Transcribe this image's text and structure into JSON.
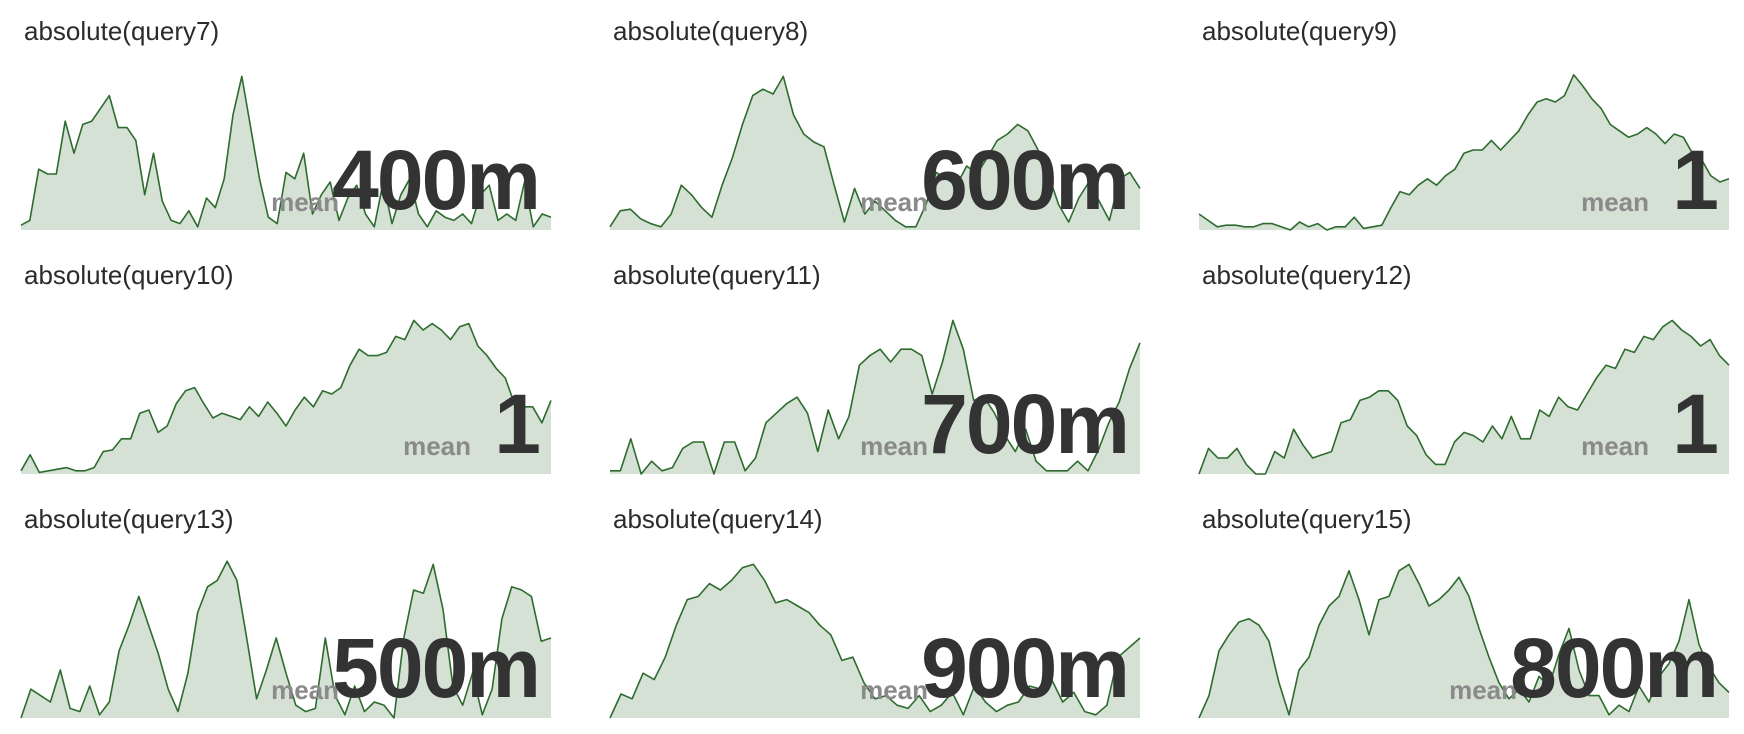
{
  "colors": {
    "line": "#2e6b2e",
    "fill": "#d4e1d4",
    "value": "#333333",
    "label": "#8a8a8a"
  },
  "chart_data": [
    {
      "type": "area",
      "title": "absolute(query7)",
      "stat_label": "mean",
      "value": "400m",
      "ylim": [
        0,
        1
      ],
      "values": [
        0.03,
        0.06,
        0.38,
        0.35,
        0.35,
        0.68,
        0.48,
        0.66,
        0.68,
        0.76,
        0.84,
        0.64,
        0.64,
        0.56,
        0.22,
        0.48,
        0.18,
        0.06,
        0.04,
        0.12,
        0.02,
        0.2,
        0.14,
        0.32,
        0.72,
        0.96,
        0.64,
        0.32,
        0.08,
        0.04,
        0.36,
        0.32,
        0.48,
        0.1,
        0.22,
        0.3,
        0.06,
        0.2,
        0.28,
        0.1,
        0.02,
        0.3,
        0.04,
        0.22,
        0.32,
        0.1,
        0.02,
        0.12,
        0.08,
        0.06,
        0.1,
        0.04,
        0.22,
        0.28,
        0.06,
        0.1,
        0.06,
        0.3,
        0.02,
        0.1,
        0.08
      ]
    },
    {
      "type": "area",
      "title": "absolute(query8)",
      "stat_label": "mean",
      "value": "600m",
      "ylim": [
        0,
        1
      ],
      "values": [
        0.02,
        0.12,
        0.13,
        0.07,
        0.04,
        0.02,
        0.1,
        0.28,
        0.22,
        0.14,
        0.08,
        0.28,
        0.45,
        0.66,
        0.84,
        0.88,
        0.85,
        0.96,
        0.72,
        0.6,
        0.55,
        0.52,
        0.28,
        0.05,
        0.26,
        0.1,
        0.18,
        0.12,
        0.06,
        0.02,
        0.02,
        0.16,
        0.36,
        0.32,
        0.28,
        0.4,
        0.35,
        0.45,
        0.56,
        0.6,
        0.66,
        0.62,
        0.5,
        0.35,
        0.16,
        0.05,
        0.2,
        0.3,
        0.18,
        0.06,
        0.32,
        0.36,
        0.26
      ]
    },
    {
      "type": "area",
      "title": "absolute(query9)",
      "stat_label": "mean",
      "value": "1",
      "ylim": [
        0,
        1
      ],
      "values": [
        0.1,
        0.06,
        0.02,
        0.03,
        0.03,
        0.02,
        0.02,
        0.04,
        0.04,
        0.02,
        0.0,
        0.05,
        0.02,
        0.04,
        0.0,
        0.02,
        0.02,
        0.08,
        0.01,
        0.02,
        0.03,
        0.14,
        0.24,
        0.22,
        0.28,
        0.32,
        0.28,
        0.34,
        0.38,
        0.48,
        0.5,
        0.5,
        0.56,
        0.5,
        0.56,
        0.62,
        0.72,
        0.8,
        0.82,
        0.8,
        0.84,
        0.97,
        0.9,
        0.82,
        0.76,
        0.66,
        0.62,
        0.58,
        0.6,
        0.64,
        0.6,
        0.54,
        0.6,
        0.58,
        0.48,
        0.44,
        0.34,
        0.3,
        0.32
      ]
    },
    {
      "type": "area",
      "title": "absolute(query10)",
      "stat_label": "mean",
      "value": "1",
      "ylim": [
        0,
        1
      ],
      "values": [
        0.02,
        0.12,
        0.01,
        0.02,
        0.03,
        0.04,
        0.02,
        0.02,
        0.04,
        0.14,
        0.15,
        0.22,
        0.22,
        0.38,
        0.4,
        0.26,
        0.3,
        0.44,
        0.52,
        0.54,
        0.44,
        0.35,
        0.38,
        0.36,
        0.34,
        0.42,
        0.36,
        0.45,
        0.38,
        0.3,
        0.4,
        0.48,
        0.42,
        0.52,
        0.5,
        0.54,
        0.68,
        0.78,
        0.74,
        0.74,
        0.76,
        0.86,
        0.84,
        0.96,
        0.9,
        0.94,
        0.9,
        0.84,
        0.92,
        0.94,
        0.8,
        0.74,
        0.66,
        0.6,
        0.44,
        0.42,
        0.42,
        0.32,
        0.46
      ]
    },
    {
      "type": "area",
      "title": "absolute(query11)",
      "stat_label": "mean",
      "value": "700m",
      "ylim": [
        0,
        1
      ],
      "values": [
        0.02,
        0.02,
        0.22,
        0.0,
        0.08,
        0.02,
        0.04,
        0.16,
        0.2,
        0.2,
        0.0,
        0.2,
        0.2,
        0.02,
        0.1,
        0.32,
        0.38,
        0.44,
        0.48,
        0.38,
        0.14,
        0.4,
        0.22,
        0.36,
        0.68,
        0.74,
        0.78,
        0.7,
        0.78,
        0.78,
        0.74,
        0.5,
        0.7,
        0.96,
        0.78,
        0.46,
        0.48,
        0.38,
        0.24,
        0.14,
        0.28,
        0.08,
        0.02,
        0.02,
        0.02,
        0.08,
        0.02,
        0.15,
        0.32,
        0.45,
        0.66,
        0.82
      ]
    },
    {
      "type": "area",
      "title": "absolute(query12)",
      "stat_label": "mean",
      "value": "1",
      "ylim": [
        0,
        1
      ],
      "values": [
        0.0,
        0.16,
        0.1,
        0.1,
        0.16,
        0.06,
        0.0,
        0.0,
        0.14,
        0.1,
        0.28,
        0.18,
        0.1,
        0.12,
        0.14,
        0.32,
        0.34,
        0.46,
        0.48,
        0.52,
        0.52,
        0.46,
        0.3,
        0.24,
        0.12,
        0.06,
        0.06,
        0.2,
        0.26,
        0.24,
        0.2,
        0.3,
        0.22,
        0.36,
        0.22,
        0.22,
        0.4,
        0.36,
        0.48,
        0.42,
        0.4,
        0.5,
        0.6,
        0.68,
        0.66,
        0.78,
        0.76,
        0.86,
        0.84,
        0.92,
        0.96,
        0.9,
        0.86,
        0.8,
        0.84,
        0.74,
        0.68
      ]
    },
    {
      "type": "area",
      "title": "absolute(query13)",
      "stat_label": "mean",
      "value": "500m",
      "ylim": [
        0,
        1
      ],
      "values": [
        0.0,
        0.18,
        0.14,
        0.1,
        0.3,
        0.06,
        0.04,
        0.2,
        0.02,
        0.1,
        0.42,
        0.58,
        0.76,
        0.58,
        0.4,
        0.18,
        0.04,
        0.28,
        0.66,
        0.82,
        0.86,
        0.98,
        0.86,
        0.5,
        0.12,
        0.3,
        0.5,
        0.28,
        0.08,
        0.04,
        0.06,
        0.5,
        0.14,
        0.02,
        0.2,
        0.04,
        0.1,
        0.08,
        0.0,
        0.5,
        0.8,
        0.78,
        0.96,
        0.68,
        0.2,
        0.08,
        0.28,
        0.02,
        0.18,
        0.62,
        0.82,
        0.8,
        0.76,
        0.48,
        0.5
      ]
    },
    {
      "type": "area",
      "title": "absolute(query14)",
      "stat_label": "mean",
      "value": "900m",
      "ylim": [
        0,
        1
      ],
      "values": [
        0.0,
        0.15,
        0.12,
        0.28,
        0.24,
        0.38,
        0.58,
        0.74,
        0.76,
        0.84,
        0.8,
        0.86,
        0.94,
        0.96,
        0.86,
        0.72,
        0.74,
        0.7,
        0.66,
        0.58,
        0.52,
        0.36,
        0.38,
        0.22,
        0.12,
        0.14,
        0.08,
        0.06,
        0.14,
        0.04,
        0.08,
        0.16,
        0.02,
        0.2,
        0.1,
        0.04,
        0.08,
        0.1,
        0.2,
        0.18,
        0.24,
        0.1,
        0.16,
        0.04,
        0.02,
        0.08,
        0.38,
        0.44,
        0.5
      ]
    },
    {
      "type": "area",
      "title": "absolute(query15)",
      "stat_label": "mean",
      "value": "800m",
      "ylim": [
        0,
        1
      ],
      "values": [
        0.0,
        0.14,
        0.42,
        0.52,
        0.6,
        0.62,
        0.58,
        0.48,
        0.22,
        0.02,
        0.3,
        0.38,
        0.58,
        0.7,
        0.76,
        0.92,
        0.74,
        0.52,
        0.74,
        0.76,
        0.92,
        0.96,
        0.84,
        0.7,
        0.74,
        0.8,
        0.88,
        0.76,
        0.56,
        0.38,
        0.22,
        0.12,
        0.18,
        0.1,
        0.26,
        0.2,
        0.4,
        0.56,
        0.3,
        0.14,
        0.14,
        0.02,
        0.08,
        0.04,
        0.2,
        0.1,
        0.26,
        0.34,
        0.48,
        0.74,
        0.46,
        0.32,
        0.22,
        0.16
      ]
    }
  ]
}
